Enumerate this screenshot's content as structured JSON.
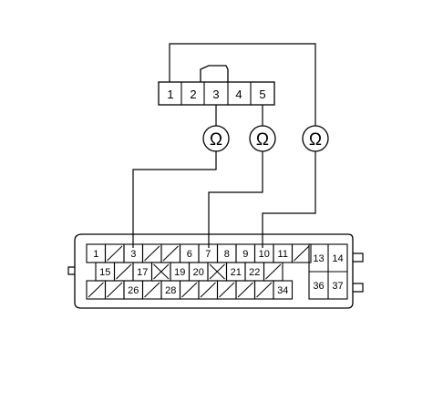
{
  "colors": {
    "line": "#000000",
    "background": "#ffffff"
  },
  "small_connector": {
    "pins": [
      "1",
      "2",
      "3",
      "4",
      "5"
    ]
  },
  "meters": [
    {
      "symbol": "Ω",
      "from_pin": "3",
      "to_pin": "3"
    },
    {
      "symbol": "Ω",
      "from_pin": "5",
      "to_pin": "7"
    },
    {
      "symbol": "Ω",
      "from_pin": "1",
      "to_pin": "10"
    }
  ],
  "ecu_connector": {
    "row1": [
      {
        "label": "1"
      },
      {
        "label": "",
        "kind": "slash"
      },
      {
        "label": "3"
      },
      {
        "label": "",
        "kind": "slash"
      },
      {
        "label": "",
        "kind": "slash"
      },
      {
        "label": "6"
      },
      {
        "label": "7"
      },
      {
        "label": "8"
      },
      {
        "label": "9"
      },
      {
        "label": "10"
      },
      {
        "label": "11"
      },
      {
        "label": "",
        "kind": "slash"
      }
    ],
    "row2": [
      {
        "label": "15"
      },
      {
        "label": "",
        "kind": "slash"
      },
      {
        "label": "17"
      },
      {
        "label": "",
        "kind": "cross"
      },
      {
        "label": "19"
      },
      {
        "label": "20"
      },
      {
        "label": "",
        "kind": "cross"
      },
      {
        "label": "21"
      },
      {
        "label": "22"
      },
      {
        "label": "",
        "kind": "slash"
      }
    ],
    "row3": [
      {
        "label": "",
        "kind": "slash"
      },
      {
        "label": "",
        "kind": "slash"
      },
      {
        "label": "26"
      },
      {
        "label": "",
        "kind": "slash"
      },
      {
        "label": "28"
      },
      {
        "label": "",
        "kind": "slash"
      },
      {
        "label": "",
        "kind": "slash"
      },
      {
        "label": "",
        "kind": "slash"
      },
      {
        "label": "",
        "kind": "slash"
      },
      {
        "label": "",
        "kind": "slash"
      },
      {
        "label": "34"
      }
    ],
    "right_block": {
      "top": [
        "13",
        "14"
      ],
      "bottom": [
        "36",
        "37"
      ]
    }
  }
}
